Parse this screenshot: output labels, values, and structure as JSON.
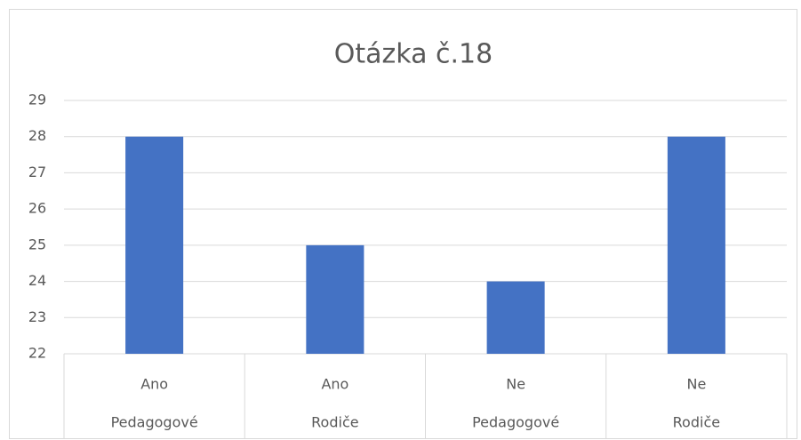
{
  "chart_data": {
    "type": "bar",
    "title": "Otázka č.18",
    "categories": [
      [
        "Ano",
        "Pedagogové"
      ],
      [
        "Ano",
        "Rodiče"
      ],
      [
        "Ne",
        "Pedagogové"
      ],
      [
        "Ne",
        "Rodiče"
      ]
    ],
    "values": [
      28,
      25,
      24,
      28
    ],
    "color": "#4472c4",
    "ylim": [
      22,
      29
    ],
    "yticks": [
      22,
      23,
      24,
      25,
      26,
      27,
      28,
      29
    ],
    "grid": true
  }
}
